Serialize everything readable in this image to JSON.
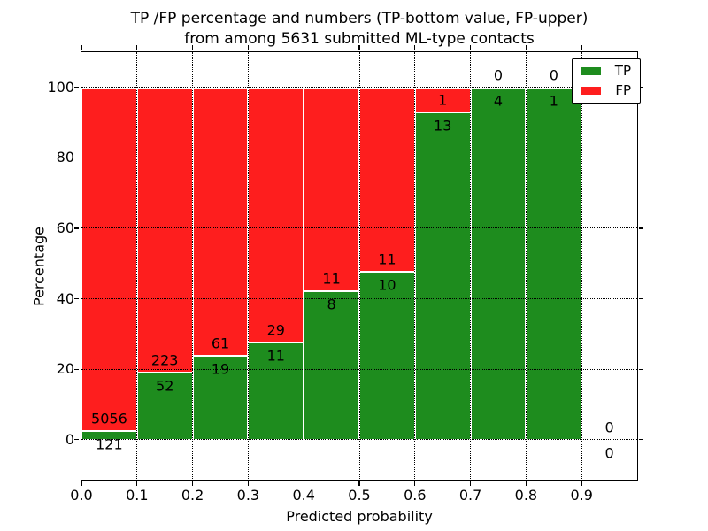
{
  "title": "TP /FP percentage and numbers (TP-bottom value, FP-upper)\nfrom among 5631 submitted ML-type contacts",
  "colors": {
    "tp_green": "#1e8c1e",
    "fp_red": "#fe1e1e",
    "grid": "#000000",
    "background": "#ffffff"
  },
  "legend": {
    "items": [
      {
        "label": "TP",
        "color": "#1e8c1e"
      },
      {
        "label": "FP",
        "color": "#fe1e1e"
      }
    ]
  },
  "chart_data": {
    "type": "bar",
    "stacked": true,
    "normalized_to_percent": true,
    "title": "TP /FP percentage and numbers (TP-bottom value, FP-upper)\nfrom among 5631 submitted ML-type contacts",
    "xlabel": "Predicted probability",
    "ylabel": "Percentage",
    "total_contacts": 5631,
    "bin_width": 0.1,
    "bin_starts": [
      0.0,
      0.1,
      0.2,
      0.3,
      0.4,
      0.5,
      0.6,
      0.7,
      0.8,
      0.9
    ],
    "series": [
      {
        "name": "TP",
        "color": "#1e8c1e",
        "counts": [
          121,
          52,
          19,
          11,
          8,
          10,
          13,
          4,
          1,
          0
        ]
      },
      {
        "name": "FP",
        "color": "#fe1e1e",
        "counts": [
          5056,
          223,
          61,
          29,
          11,
          11,
          1,
          0,
          0,
          0
        ]
      }
    ],
    "tp_percent_of_bin": [
      2.34,
      18.91,
      23.75,
      27.5,
      42.11,
      47.62,
      92.86,
      100,
      100,
      null
    ],
    "x_tick_labels": [
      "0.0",
      "0.1",
      "0.2",
      "0.3",
      "0.4",
      "0.5",
      "0.6",
      "0.7",
      "0.8",
      "0.9"
    ],
    "y_tick_values": [
      0,
      20,
      40,
      60,
      80,
      100
    ],
    "y_tick_labels": [
      "0",
      "20",
      "40",
      "60",
      "80",
      "100"
    ],
    "xlim": [
      0.0,
      1.0
    ],
    "ylim": [
      -11.5,
      110
    ],
    "grid": true,
    "grid_style": "dotted",
    "legend_position": "upper right"
  }
}
